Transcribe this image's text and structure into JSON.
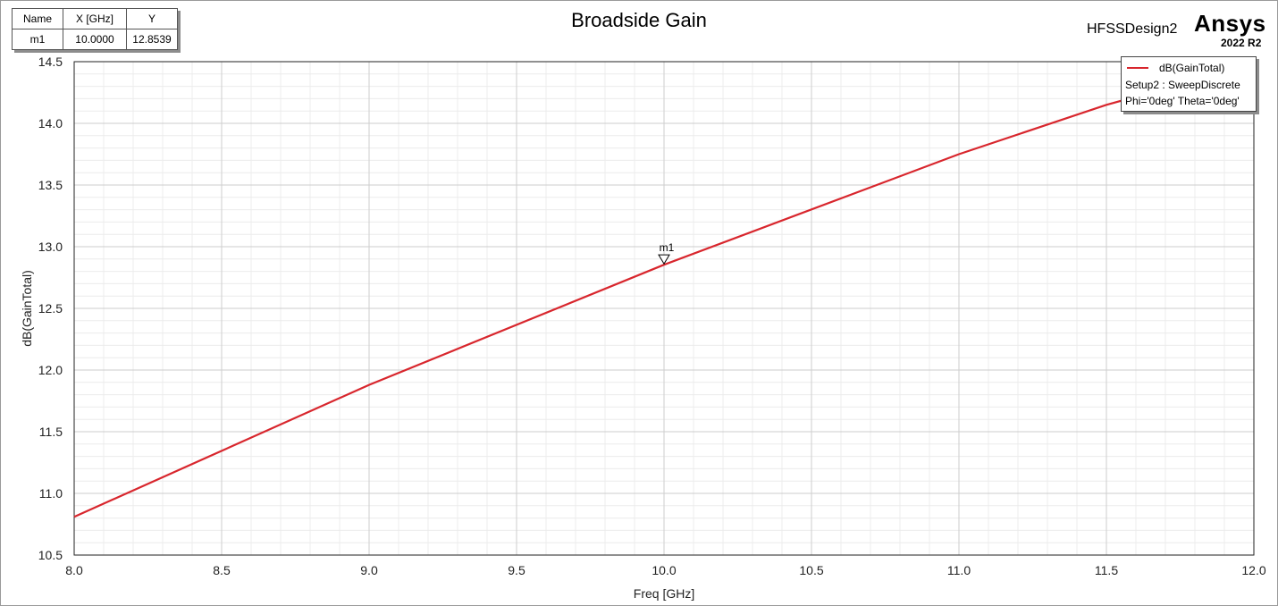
{
  "header": {
    "title": "Broadside Gain",
    "design_name": "HFSSDesign2",
    "brand": "Ansys",
    "version": "2022 R2"
  },
  "marker_table": {
    "headers": [
      "Name",
      "X [GHz]",
      "Y"
    ],
    "rows": [
      [
        "m1",
        "10.0000",
        "12.8539"
      ]
    ]
  },
  "legend": {
    "series_name": "dB(GainTotal)",
    "setup": "Setup2 : SweepDiscrete",
    "variables": "Phi='0deg' Theta='0deg'"
  },
  "colors": {
    "series": "#d8262d",
    "grid_major": "#cdcdcd",
    "grid_minor": "#ececec"
  },
  "chart_data": {
    "type": "line",
    "title": "Broadside Gain",
    "xlabel": "Freq [GHz]",
    "ylabel": "dB(GainTotal)",
    "xlim": [
      8.0,
      12.0
    ],
    "ylim": [
      10.5,
      14.5
    ],
    "xticks": [
      8.0,
      8.5,
      9.0,
      9.5,
      10.0,
      10.5,
      11.0,
      11.5,
      12.0
    ],
    "xtick_labels": [
      "8.0",
      "8.5",
      "9.0",
      "9.5",
      "10.0",
      "10.5",
      "11.0",
      "11.5",
      "12.0"
    ],
    "yticks": [
      10.5,
      11.0,
      11.5,
      12.0,
      12.5,
      13.0,
      13.5,
      14.0,
      14.5
    ],
    "ytick_labels": [
      "10.5",
      "11.0",
      "11.5",
      "12.0",
      "12.5",
      "13.0",
      "13.5",
      "14.0",
      "14.5"
    ],
    "grid": true,
    "legend_position": "top-right",
    "series": [
      {
        "name": "dB(GainTotal)",
        "x": [
          8.0,
          9.0,
          10.0,
          11.0,
          11.5,
          12.0
        ],
        "y": [
          10.81,
          11.88,
          12.8539,
          13.75,
          14.15,
          14.48
        ]
      }
    ],
    "markers": [
      {
        "name": "m1",
        "x": 10.0,
        "y": 12.8539
      }
    ]
  }
}
